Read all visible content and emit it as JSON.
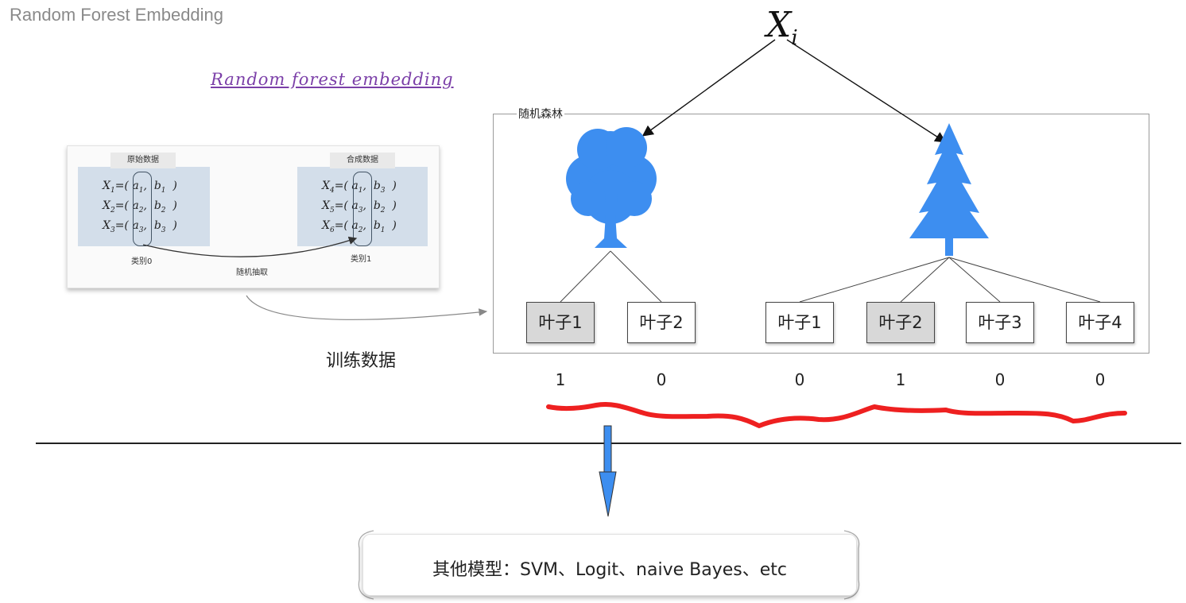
{
  "page_title": "Random Forest Embedding",
  "embed_title": "Random forest embedding",
  "data_card": {
    "original_label": "原始数据",
    "synthetic_label": "合成数据",
    "original_rows": [
      {
        "name": "X",
        "sub": "1",
        "a": "a",
        "a_sub": "1",
        "b": "b",
        "b_sub": "1"
      },
      {
        "name": "X",
        "sub": "2",
        "a": "a",
        "a_sub": "2",
        "b": "b",
        "b_sub": "2"
      },
      {
        "name": "X",
        "sub": "3",
        "a": "a",
        "a_sub": "3",
        "b": "b",
        "b_sub": "3"
      }
    ],
    "synthetic_rows": [
      {
        "name": "X",
        "sub": "4",
        "a": "a",
        "a_sub": "1",
        "b": "b",
        "b_sub": "3"
      },
      {
        "name": "X",
        "sub": "5",
        "a": "a",
        "a_sub": "3",
        "b": "b",
        "b_sub": "2"
      },
      {
        "name": "X",
        "sub": "6",
        "a": "a",
        "a_sub": "2",
        "b": "b",
        "b_sub": "1"
      }
    ],
    "class0_label": "类别0",
    "class1_label": "类别1",
    "sampling_label": "随机抽取"
  },
  "training_label": "训练数据",
  "forest": {
    "label": "随机森林",
    "input_symbol": "X",
    "input_subscript": "i",
    "tree_colors": {
      "fill": "#3d8ef0"
    },
    "leaves": [
      {
        "label": "叶子1",
        "value": "1",
        "active": true
      },
      {
        "label": "叶子2",
        "value": "0",
        "active": false
      },
      {
        "label": "叶子1",
        "value": "0",
        "active": false
      },
      {
        "label": "叶子2",
        "value": "1",
        "active": true
      },
      {
        "label": "叶子3",
        "value": "0",
        "active": false
      },
      {
        "label": "叶子4",
        "value": "0",
        "active": false
      }
    ]
  },
  "models_text": "其他模型：SVM、Logit、naive Bayes、etc",
  "colors": {
    "accent_red": "#ee2020",
    "arrow_blue": "#3d8ef0",
    "title_purple": "#7b3fa8"
  }
}
